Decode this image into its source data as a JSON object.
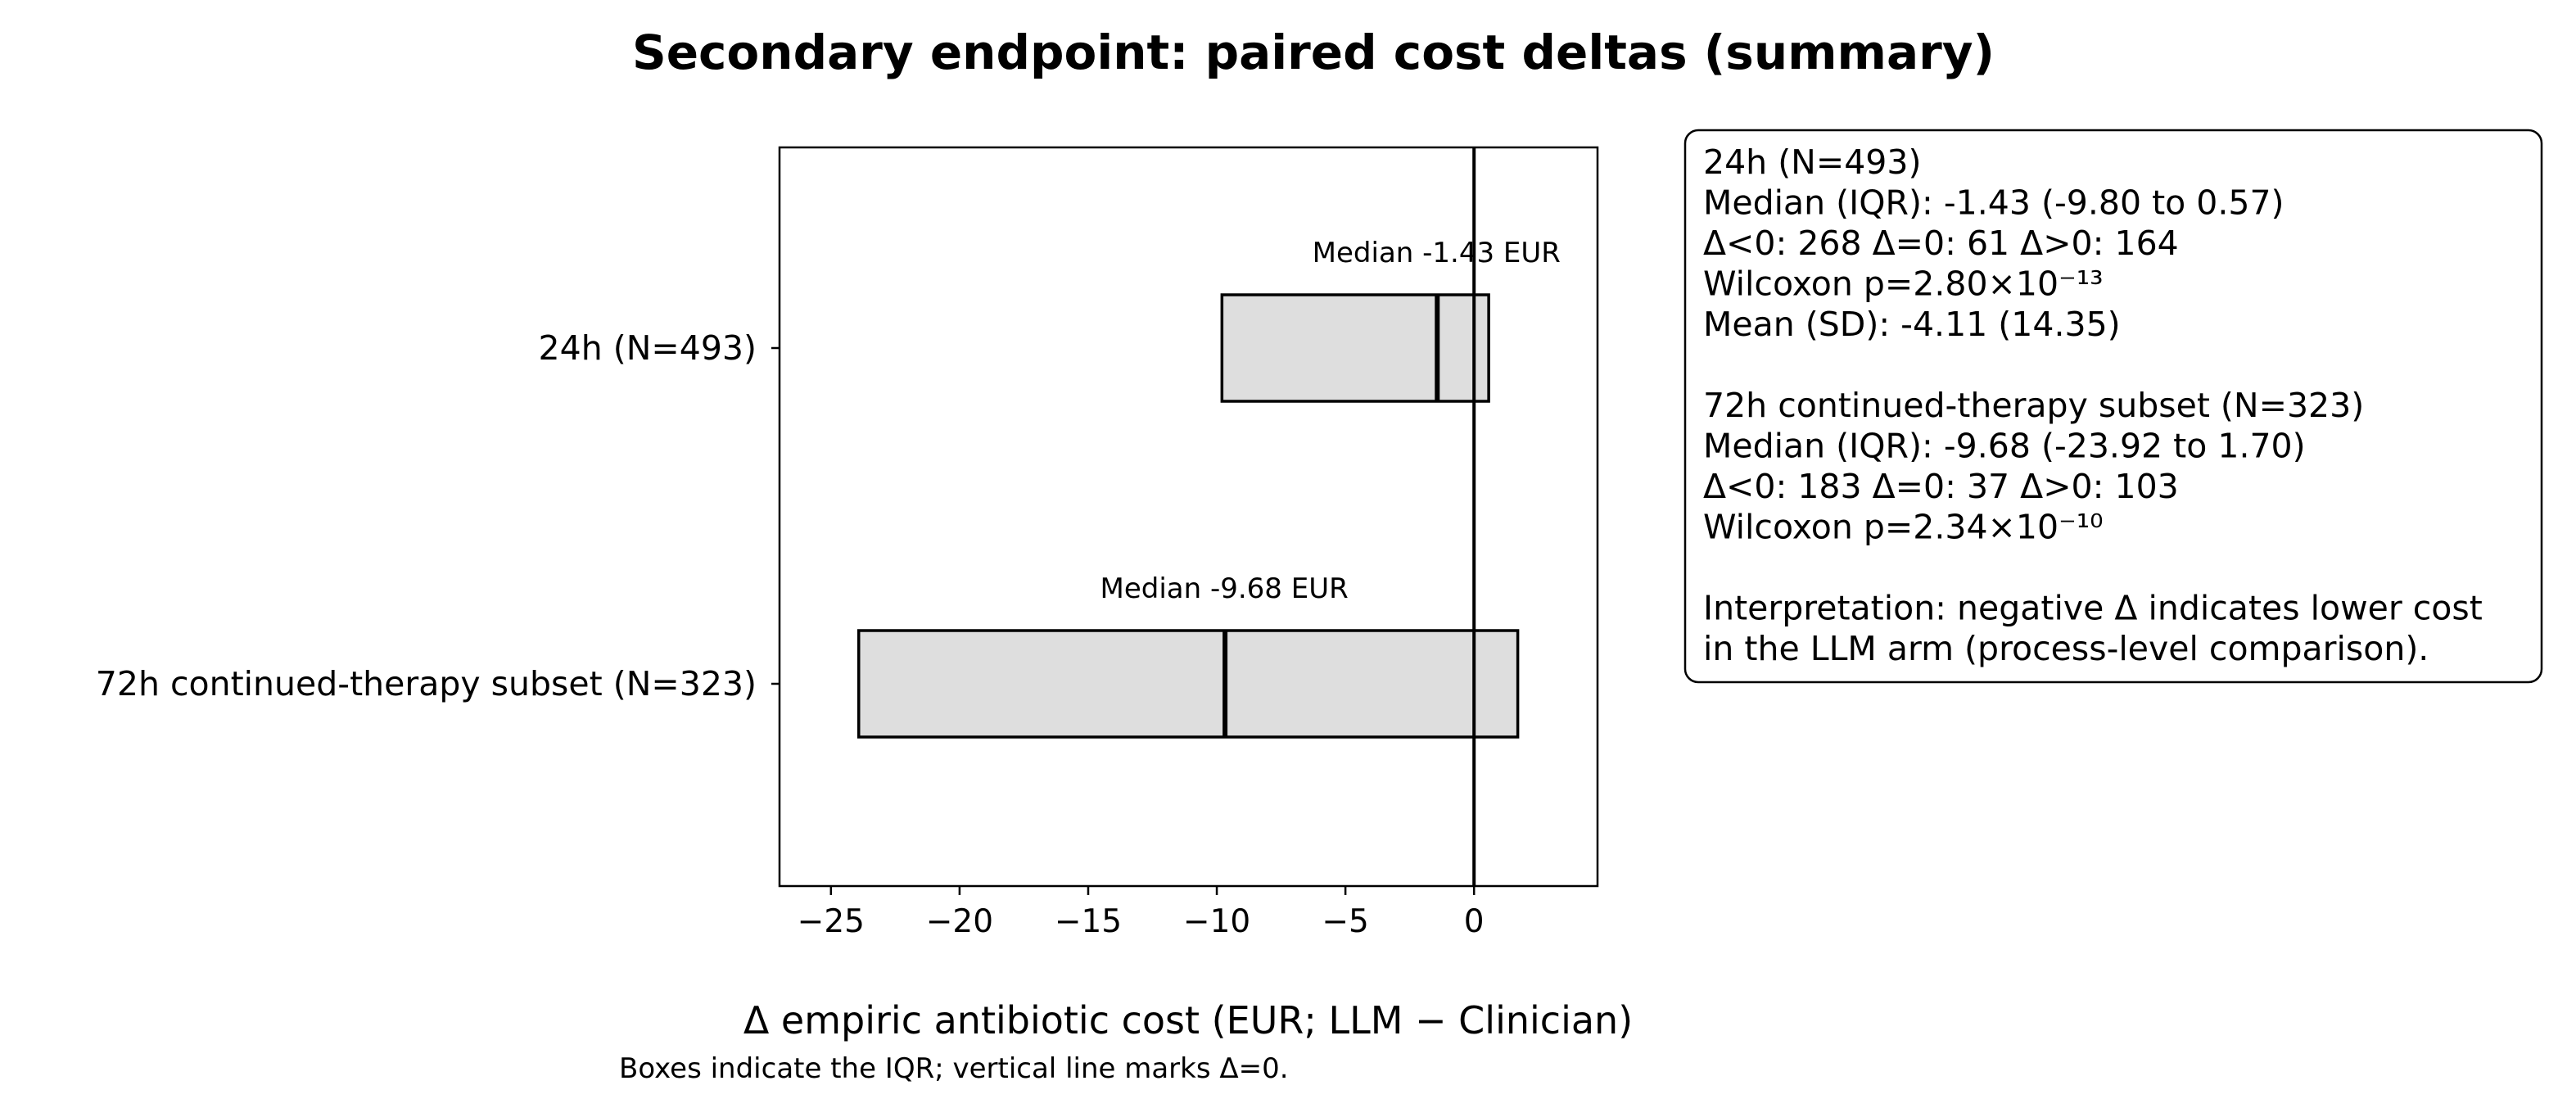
{
  "chart_data": {
    "type": "box",
    "title": "Secondary endpoint: paired cost deltas (summary)",
    "xlabel": "Δ empiric antibiotic cost (EUR; LLM − Clinician)",
    "caption": "Boxes indicate the IQR; vertical line marks Δ=0.",
    "xlim": [
      -27,
      4.8
    ],
    "xticks": [
      -25,
      -20,
      -15,
      -10,
      -5,
      0
    ],
    "xtick_labels": [
      "−25",
      "−20",
      "−15",
      "−10",
      "−5",
      "0"
    ],
    "grid": false,
    "reference_line_x": 0,
    "categories": [
      "24h (N=493)",
      "72h continued-therapy subset (N=323)"
    ],
    "boxes": [
      {
        "label": "24h (N=493)",
        "q1": -9.8,
        "median": -1.43,
        "q3": 0.57,
        "median_label": "Median -1.43 EUR"
      },
      {
        "label": "72h continued-therapy subset (N=323)",
        "q1": -23.92,
        "median": -9.68,
        "q3": 1.7,
        "median_label": "Median -9.68 EUR"
      }
    ],
    "colors": {
      "box_fill": "#dedede",
      "box_edge": "#000000",
      "median_line": "#000000",
      "zero_line": "#000000"
    },
    "stats_box": {
      "lines": [
        "24h (N=493)",
        "Median (IQR): -1.43 (-9.80 to 0.57)",
        "Δ<0: 268   Δ=0: 61   Δ>0: 164",
        "Wilcoxon p=2.80×10⁻¹³",
        "Mean (SD): -4.11 (14.35)",
        "",
        "72h continued-therapy subset (N=323)",
        "Median (IQR): -9.68 (-23.92 to 1.70)",
        "Δ<0: 183   Δ=0: 37   Δ>0: 103",
        "Wilcoxon p=2.34×10⁻¹⁰",
        "",
        "Interpretation: negative Δ indicates lower cost",
        "in the LLM arm (process-level comparison)."
      ]
    }
  }
}
